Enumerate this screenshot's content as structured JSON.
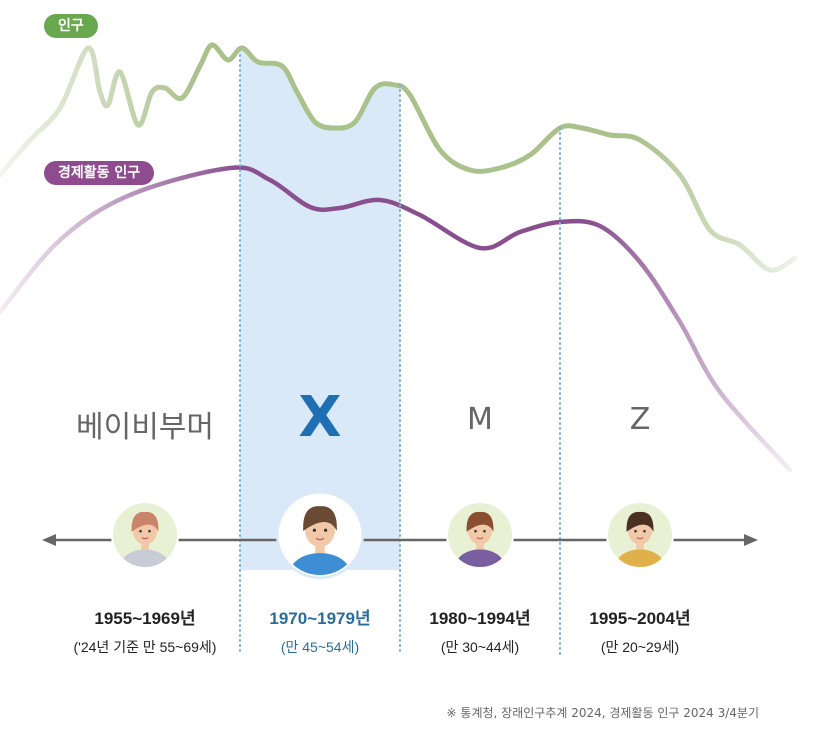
{
  "legend": {
    "population": {
      "label": "인구",
      "color": "#6aa84f",
      "line_color": "#a9c18b"
    },
    "economic": {
      "label": "경제활동 인구",
      "color": "#8e4c8e",
      "line_color": "#8a4f8f"
    }
  },
  "highlight_color": "#d9e9f7",
  "generations": [
    {
      "name": "베이비부머",
      "years": "1955~1969년",
      "age": "('24년 기준 만 55~69세)",
      "avatar": "woman-avatar-icon"
    },
    {
      "name": "X",
      "years": "1970~1979년",
      "age": "(만 45~54세)",
      "avatar": "man-avatar-icon",
      "highlighted": true
    },
    {
      "name": "M",
      "years": "1980~1994년",
      "age": "(만 30~44세)",
      "avatar": "woman-headset-avatar-icon"
    },
    {
      "name": "Z",
      "years": "1995~2004년",
      "age": "(만 20~29세)",
      "avatar": "young-man-avatar-icon"
    }
  ],
  "source": "※ 통계청,  장래인구추계 2024, 경제활동 인구 2024  3/4분기"
}
